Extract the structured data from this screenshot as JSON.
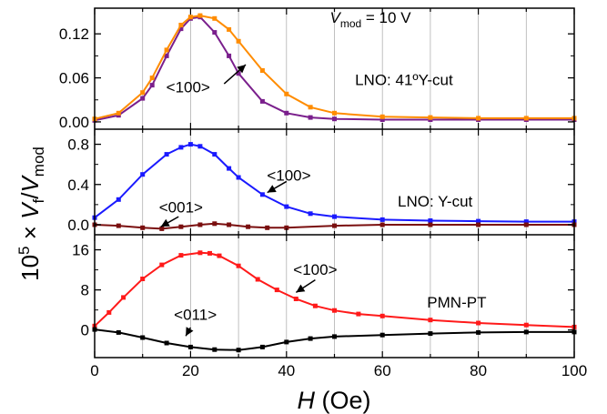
{
  "chart_data": {
    "type": "line",
    "xlabel_symbol": "H",
    "xlabel_unit": "(Oe)",
    "xlim": [
      0,
      100
    ],
    "x_ticks": [
      0,
      20,
      40,
      60,
      80,
      100
    ],
    "ylabel": {
      "prefix": "10",
      "exp": "5",
      "times": "×",
      "sym1": "V",
      "sub1": "f",
      "slash": "/",
      "sym2": "V",
      "sub2": "mod"
    },
    "colors": {
      "purple": "#7a1f8c",
      "orange": "#ff8c00",
      "blue": "#1a1aff",
      "darkred": "#7a0f0f",
      "red": "#ff1a1a",
      "black": "#000000",
      "grid": "#b0b0b0"
    },
    "panels": [
      {
        "ylim": [
          -0.01,
          0.155
        ],
        "yticks": [
          0.0,
          0.06,
          0.12
        ],
        "ytick_labels": [
          "0.00",
          "0.06",
          "0.12"
        ],
        "series": [
          {
            "color": "purple",
            "x": [
              0,
              5,
              10,
              12,
              15,
              18,
              20,
              22,
              25,
              28,
              30,
              35,
              40,
              45,
              50,
              60,
              70,
              80,
              90,
              100
            ],
            "y": [
              0.002,
              0.009,
              0.032,
              0.05,
              0.09,
              0.127,
              0.141,
              0.143,
              0.122,
              0.09,
              0.066,
              0.028,
              0.012,
              0.006,
              0.004,
              0.003,
              0.003,
              0.003,
              0.003,
              0.003
            ]
          },
          {
            "color": "orange",
            "x": [
              0,
              5,
              10,
              12,
              15,
              18,
              20,
              22,
              25,
              28,
              30,
              35,
              40,
              45,
              50,
              60,
              70,
              80,
              90,
              100
            ],
            "y": [
              0.004,
              0.012,
              0.04,
              0.06,
              0.098,
              0.132,
              0.143,
              0.145,
              0.141,
              0.126,
              0.11,
              0.07,
              0.038,
              0.02,
              0.012,
              0.007,
              0.006,
              0.005,
              0.005,
              0.005
            ]
          }
        ],
        "annotations": [
          {
            "text": "<100>",
            "x": 19.5,
            "y": 0.04
          },
          {
            "text": "LNO: 41ºY-cut",
            "x": 64.5,
            "y": 0.05
          }
        ],
        "arrows": [
          {
            "from": [
              27.0,
              0.052
            ],
            "to": [
              31.5,
              0.078
            ]
          }
        ],
        "vmod": {
          "sym": "V",
          "sub": "mod",
          "rest": " = 10 V",
          "x": 57.5,
          "y": 0.135
        }
      },
      {
        "ylim": [
          -0.1,
          0.95
        ],
        "yticks": [
          0.0,
          0.4,
          0.8
        ],
        "ytick_labels": [
          "0.0",
          "0.4",
          "0.8"
        ],
        "series": [
          {
            "color": "blue",
            "x": [
              0,
              5,
              10,
              15,
              18,
              20,
              22,
              25,
              28,
              30,
              35,
              40,
              45,
              50,
              60,
              70,
              80,
              90,
              100
            ],
            "y": [
              0.07,
              0.25,
              0.5,
              0.7,
              0.77,
              0.8,
              0.78,
              0.7,
              0.56,
              0.47,
              0.3,
              0.18,
              0.11,
              0.08,
              0.05,
              0.04,
              0.035,
              0.03,
              0.03
            ]
          },
          {
            "color": "darkred",
            "x": [
              0,
              5,
              10,
              14,
              18,
              22,
              25,
              28,
              32,
              36,
              40,
              50,
              60,
              70,
              80,
              90,
              100
            ],
            "y": [
              0.0,
              -0.01,
              -0.03,
              -0.04,
              -0.02,
              0.0,
              0.01,
              0.0,
              -0.02,
              -0.03,
              -0.03,
              -0.01,
              0.0,
              0.0,
              0.0,
              0.0,
              0.0
            ]
          }
        ],
        "annotations": [
          {
            "text": "<100>",
            "x": 40.5,
            "y": 0.44
          },
          {
            "text": "<001>",
            "x": 18.0,
            "y": 0.12
          },
          {
            "text": "LNO: Y-cut",
            "x": 71.0,
            "y": 0.18
          }
        ],
        "arrows": [
          {
            "from": [
              40.0,
              0.43
            ],
            "to": [
              36.0,
              0.32
            ]
          },
          {
            "from": [
              17.5,
              0.08
            ],
            "to": [
              13.8,
              -0.02
            ]
          }
        ]
      },
      {
        "ylim": [
          -5.5,
          19
        ],
        "yticks": [
          0,
          8,
          16
        ],
        "ytick_labels": [
          "0",
          "8",
          "16"
        ],
        "series": [
          {
            "color": "red",
            "x": [
              0,
              3,
              6,
              10,
              14,
              18,
              22,
              24,
              26,
              30,
              34,
              38,
              42,
              46,
              50,
              55,
              60,
              70,
              80,
              90,
              100
            ],
            "y": [
              0.8,
              3.5,
              6.5,
              10.2,
              13,
              14.9,
              15.4,
              15.3,
              14.8,
              12.8,
              10.1,
              8.0,
              6.2,
              4.8,
              3.9,
              3.2,
              2.8,
              2.0,
              1.4,
              1.0,
              0.6
            ]
          },
          {
            "color": "black",
            "x": [
              0,
              5,
              10,
              15,
              20,
              25,
              30,
              35,
              40,
              45,
              50,
              60,
              70,
              80,
              90,
              100
            ],
            "y": [
              0.1,
              -0.5,
              -1.5,
              -2.6,
              -3.4,
              -3.9,
              -4.0,
              -3.4,
              -2.4,
              -1.7,
              -1.3,
              -1.0,
              -0.7,
              -0.5,
              -0.4,
              -0.4
            ]
          }
        ],
        "annotations": [
          {
            "text": "<100>",
            "x": 46.0,
            "y": 11.0
          },
          {
            "text": "<011>",
            "x": 21.0,
            "y": 2.0
          },
          {
            "text": "PMN-PT",
            "x": 75.5,
            "y": 4.5
          }
        ],
        "arrows": [
          {
            "from": [
              46.0,
              10.0
            ],
            "to": [
              42.0,
              7.5
            ]
          },
          {
            "from": [
              20.0,
              0.5
            ],
            "to": [
              19.0,
              -1.2
            ]
          }
        ]
      }
    ]
  }
}
